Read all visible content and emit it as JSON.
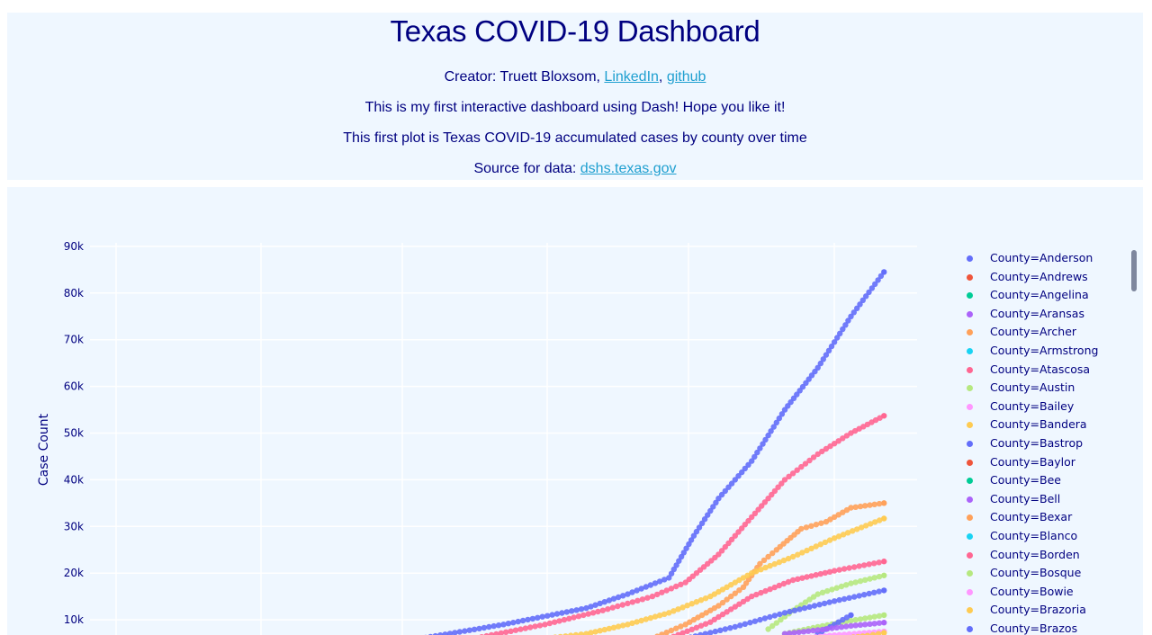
{
  "header": {
    "title": "Texas COVID-19 Dashboard",
    "creator_prefix": "Creator: Truett Bloxsom, ",
    "linkedin_label": "LinkedIn",
    "comma": ", ",
    "github_label": "github",
    "intro": "This is my first interactive dashboard using Dash! Hope you like it!",
    "plot_description": "This first plot is Texas COVID-19 accumulated cases by county over time",
    "source_prefix": "Source for data: ",
    "source_link": "dshs.texas.gov"
  },
  "colors": {
    "page_bg": "#ffffff",
    "panel_bg": "#eff7ff",
    "text": "#000080",
    "link": "#1e9fd0",
    "grid": "#ffffff",
    "scrollbar": "#7e879e"
  },
  "legend": {
    "items": [
      {
        "label": "County=Anderson",
        "color": "#636efa"
      },
      {
        "label": "County=Andrews",
        "color": "#ef553b"
      },
      {
        "label": "County=Angelina",
        "color": "#00cc96"
      },
      {
        "label": "County=Aransas",
        "color": "#ab63fa"
      },
      {
        "label": "County=Archer",
        "color": "#ffa15a"
      },
      {
        "label": "County=Armstrong",
        "color": "#19d3f3"
      },
      {
        "label": "County=Atascosa",
        "color": "#ff6692"
      },
      {
        "label": "County=Austin",
        "color": "#b6e880"
      },
      {
        "label": "County=Bailey",
        "color": "#ff97ff"
      },
      {
        "label": "County=Bandera",
        "color": "#fecb52"
      },
      {
        "label": "County=Bastrop",
        "color": "#636efa"
      },
      {
        "label": "County=Baylor",
        "color": "#ef553b"
      },
      {
        "label": "County=Bee",
        "color": "#00cc96"
      },
      {
        "label": "County=Bell",
        "color": "#ab63fa"
      },
      {
        "label": "County=Bexar",
        "color": "#ffa15a"
      },
      {
        "label": "County=Blanco",
        "color": "#19d3f3"
      },
      {
        "label": "County=Borden",
        "color": "#ff6692"
      },
      {
        "label": "County=Bosque",
        "color": "#b6e880"
      },
      {
        "label": "County=Bowie",
        "color": "#ff97ff"
      },
      {
        "label": "County=Brazoria",
        "color": "#fecb52"
      },
      {
        "label": "County=Brazos",
        "color": "#636efa"
      }
    ]
  },
  "chart_data": {
    "type": "scatter",
    "title": "",
    "xlabel": "",
    "ylabel": "Case Count",
    "ylim": [
      0,
      90000
    ],
    "y_ticks": [
      "10k",
      "20k",
      "30k",
      "40k",
      "50k",
      "60k",
      "70k",
      "80k",
      "90k"
    ],
    "grid": true,
    "legend_position": "right",
    "x_index_range": [
      0,
      100
    ],
    "x_note": "time axis (dates not visible); x expressed as relative index 0-100 across plot width",
    "series": [
      {
        "name": "County=Anderson",
        "color": "#636efa",
        "x": [
          40,
          50,
          60,
          65,
          70,
          73,
          76,
          80,
          84,
          88,
          92,
          96
        ],
        "y": [
          6000,
          9000,
          12500,
          15500,
          19000,
          28000,
          36000,
          44000,
          55000,
          64000,
          75000,
          84500
        ]
      },
      {
        "name": "County=Atascosa",
        "color": "#ff6692",
        "x": [
          45,
          55,
          62,
          68,
          72,
          76,
          80,
          84,
          88,
          92,
          96
        ],
        "y": [
          5500,
          9000,
          12000,
          15000,
          18000,
          24000,
          32000,
          40000,
          45500,
          50000,
          53700
        ]
      },
      {
        "name": "County=Archer",
        "color": "#ffa15a",
        "x": [
          68,
          72,
          76,
          79,
          81,
          83,
          86,
          89,
          92,
          96
        ],
        "y": [
          6000,
          9000,
          13000,
          17000,
          22000,
          25000,
          29500,
          31000,
          34000,
          35000
        ]
      },
      {
        "name": "County=Bandera",
        "color": "#fecb52",
        "x": [
          55,
          60,
          65,
          70,
          75,
          80,
          85,
          90,
          96
        ],
        "y": [
          6000,
          7000,
          9000,
          11500,
          15000,
          20000,
          23500,
          27500,
          31700
        ]
      },
      {
        "name": "County=Borden",
        "color": "#ff6692",
        "x": [
          70,
          75,
          80,
          85,
          90,
          96
        ],
        "y": [
          6000,
          9500,
          15000,
          18500,
          20500,
          22500
        ]
      },
      {
        "name": "County=Bosque",
        "color": "#b6e880",
        "x": [
          82,
          85,
          88,
          92,
          96
        ],
        "y": [
          8000,
          12000,
          15500,
          17800,
          19500
        ]
      },
      {
        "name": "County=Bastrop",
        "color": "#636efa",
        "x": [
          72,
          78,
          84,
          90,
          96
        ],
        "y": [
          6000,
          8500,
          11500,
          14000,
          16300
        ]
      },
      {
        "name": "County=Austin",
        "color": "#b6e880",
        "x": [
          84,
          88,
          92,
          96
        ],
        "y": [
          7000,
          8500,
          9800,
          11000
        ]
      },
      {
        "name": "County=Brazos",
        "color": "#636efa",
        "x": [
          88,
          90,
          92
        ],
        "y": [
          7000,
          9000,
          11000
        ]
      },
      {
        "name": "County=Aransas",
        "color": "#ab63fa",
        "x": [
          84,
          88,
          92,
          96
        ],
        "y": [
          7000,
          7800,
          8700,
          9400
        ]
      },
      {
        "name": "County=Bailey",
        "color": "#ff97ff",
        "x": [
          86,
          90,
          96
        ],
        "y": [
          6000,
          6700,
          7500
        ]
      },
      {
        "name": "County=Brazoria",
        "color": "#fecb52",
        "x": [
          90,
          94,
          96
        ],
        "y": [
          5800,
          6600,
          7200
        ]
      }
    ]
  }
}
